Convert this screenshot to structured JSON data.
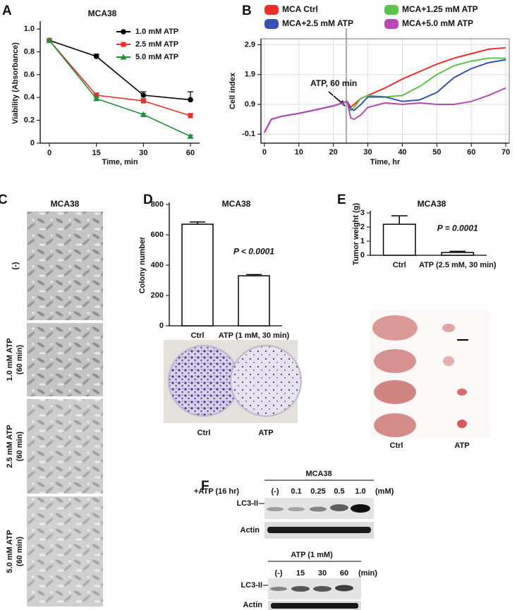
{
  "chart_data": [
    {
      "panel_label": "A",
      "type": "line",
      "title": "MCA38",
      "y_label": "Viability (Absorbance)",
      "x_label": "Time, min",
      "categories": [
        "0",
        "15",
        "30",
        "60"
      ],
      "series": [
        {
          "name": "1.0 mM ATP",
          "color": "#000000",
          "marker": "circle",
          "values": [
            0.9,
            0.76,
            0.42,
            0.38
          ],
          "errors": [
            0,
            0.02,
            0.03,
            0.07
          ]
        },
        {
          "name": "2.5 mM ATP",
          "color": "#e8302a",
          "marker": "square",
          "values": [
            0.9,
            0.42,
            0.37,
            0.24
          ],
          "errors": [
            0,
            0.02,
            0.02,
            0.02
          ]
        },
        {
          "name": "5.0 mM ATP",
          "color": "#1f8f3a",
          "marker": "triangle",
          "values": [
            0.9,
            0.39,
            0.25,
            0.06
          ],
          "errors": [
            0,
            0.01,
            0.01,
            0.01
          ]
        }
      ],
      "ylim": [
        0,
        1.05
      ],
      "yticks": [
        0,
        0.2,
        0.4,
        0.6,
        0.8,
        {
          "value": 1,
          "label": "1.0"
        }
      ],
      "grid": false,
      "legend": "upper right"
    },
    {
      "panel_label": "B",
      "type": "line",
      "y_label": "Cell index",
      "x_label": "Time, hr",
      "annotation": "ATP, 60 min",
      "x": [
        0,
        2,
        5,
        10,
        15,
        20,
        24,
        25,
        26,
        28,
        30,
        35,
        40,
        45,
        50,
        55,
        60,
        65,
        70
      ],
      "series": [
        {
          "name": "MCA Ctrl",
          "color": "#e8302a",
          "values": [
            -0.05,
            0.4,
            0.5,
            0.6,
            0.72,
            0.85,
            1.0,
            0.8,
            0.9,
            1.1,
            1.2,
            1.45,
            1.75,
            2.0,
            2.25,
            2.45,
            2.6,
            2.75,
            2.8
          ]
        },
        {
          "name": "MCA+1.25 mM ATP",
          "color": "#5cc34a",
          "values": [
            -0.05,
            0.4,
            0.5,
            0.6,
            0.72,
            0.85,
            1.0,
            0.7,
            0.8,
            1.1,
            1.2,
            1.15,
            1.2,
            1.5,
            1.9,
            2.2,
            2.35,
            2.45,
            2.45
          ]
        },
        {
          "name": "MCA+2.5 mM ATP",
          "color": "#3552b0",
          "values": [
            -0.05,
            0.4,
            0.5,
            0.6,
            0.72,
            0.85,
            1.0,
            0.75,
            0.7,
            0.9,
            1.15,
            1.15,
            1.0,
            1.05,
            1.3,
            1.8,
            2.1,
            2.3,
            2.4
          ]
        },
        {
          "name": "MCA+5.0 mM ATP",
          "color": "#b848b8",
          "values": [
            -0.05,
            0.4,
            0.5,
            0.6,
            0.72,
            0.85,
            1.0,
            0.45,
            0.4,
            0.55,
            0.8,
            0.95,
            0.9,
            0.95,
            0.9,
            0.9,
            1.0,
            1.2,
            1.45
          ]
        }
      ],
      "xlim": [
        -1,
        71
      ],
      "xticks": [
        0,
        10,
        20,
        30,
        40,
        50,
        60,
        70
      ],
      "ylim": [
        -0.4,
        3.1
      ],
      "yticks": [
        -0.1,
        0.9,
        1.9,
        2.9
      ],
      "grid": true,
      "legend": "above"
    },
    {
      "panel_label": "D",
      "type": "bar",
      "title": "MCA38",
      "y_label": "Colony number",
      "categories": [
        "Ctrl",
        "ATP (1 mM, 30 min)"
      ],
      "values": [
        670,
        330
      ],
      "errors": [
        15,
        8
      ],
      "color": "#ffffff",
      "ylim": [
        0,
        800
      ],
      "yticks": [
        0,
        200,
        400,
        600,
        800
      ],
      "annotation": "P < 0.0001",
      "photo_labels": [
        "Ctrl",
        "ATP"
      ]
    },
    {
      "panel_label": "E",
      "type": "bar",
      "title": "MCA38",
      "y_label": "Tumor weight (g)",
      "categories": [
        "Ctrl",
        "ATP (2.5 mM, 30 min)"
      ],
      "values": [
        2.2,
        0.2
      ],
      "errors": [
        0.6,
        0.08
      ],
      "color": "#ffffff",
      "ylim": [
        0,
        3
      ],
      "yticks": [
        0,
        1,
        2,
        3
      ],
      "annotation": "P = 0.0001",
      "photo_labels": [
        "Ctrl",
        "ATP"
      ]
    }
  ],
  "panel_c": {
    "panel_label": "C",
    "title": "MCA38",
    "labels": [
      [
        "(-)"
      ],
      [
        "1.0 mM ATP",
        "(60 min)"
      ],
      [
        "2.5 mM ATP",
        "(60 min)"
      ],
      [
        "5.0 mM ATP",
        "(60 min)"
      ]
    ]
  },
  "panel_f": {
    "panel_label": "F",
    "blots": [
      {
        "title": "MCA38",
        "treatment": "+ATP (16 hr)",
        "lanes": [
          "(-)",
          "0.1",
          "0.25",
          "0.5",
          "1.0"
        ],
        "unit": "(mM)",
        "rows": [
          "LC3-II",
          "Actin"
        ]
      },
      {
        "treatment": "ATP (1 mM)",
        "lanes": [
          "(-)",
          "15",
          "30",
          "60"
        ],
        "unit": "(min)",
        "rows": [
          "LC3-II",
          "Actin"
        ]
      }
    ]
  }
}
